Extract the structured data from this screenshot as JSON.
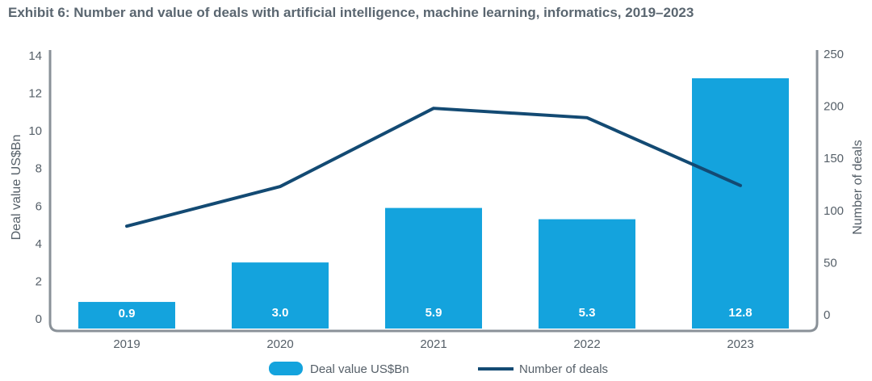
{
  "title": "Exhibit 6: Number and value of deals with artificial intelligence, machine learning, informatics, 2019–2023",
  "chart_data": {
    "type": "bar+line",
    "categories": [
      "2019",
      "2020",
      "2021",
      "2022",
      "2023"
    ],
    "series": [
      {
        "name": "Deal value US$Bn",
        "type": "bar",
        "axis": "left",
        "values": [
          0.9,
          3.0,
          5.9,
          5.3,
          12.8
        ],
        "labels": [
          "0.9",
          "3.0",
          "5.9",
          "5.3",
          "12.8"
        ],
        "color": "#14a3dd"
      },
      {
        "name": "Number of deals",
        "type": "line",
        "axis": "right",
        "values": [
          85,
          123,
          198,
          189,
          124
        ],
        "color": "#134a73"
      }
    ],
    "left_axis": {
      "label": "Deal value US$Bn",
      "ylim": [
        0,
        14
      ],
      "ticks": [
        "0",
        "2",
        "4",
        "6",
        "8",
        "10",
        "12",
        "14"
      ]
    },
    "right_axis": {
      "label": "Number of deals",
      "ylim": [
        0,
        250
      ],
      "ticks": [
        "0",
        "50",
        "100",
        "150",
        "200",
        "250"
      ]
    },
    "grid": false,
    "legend": "bottom-center"
  }
}
